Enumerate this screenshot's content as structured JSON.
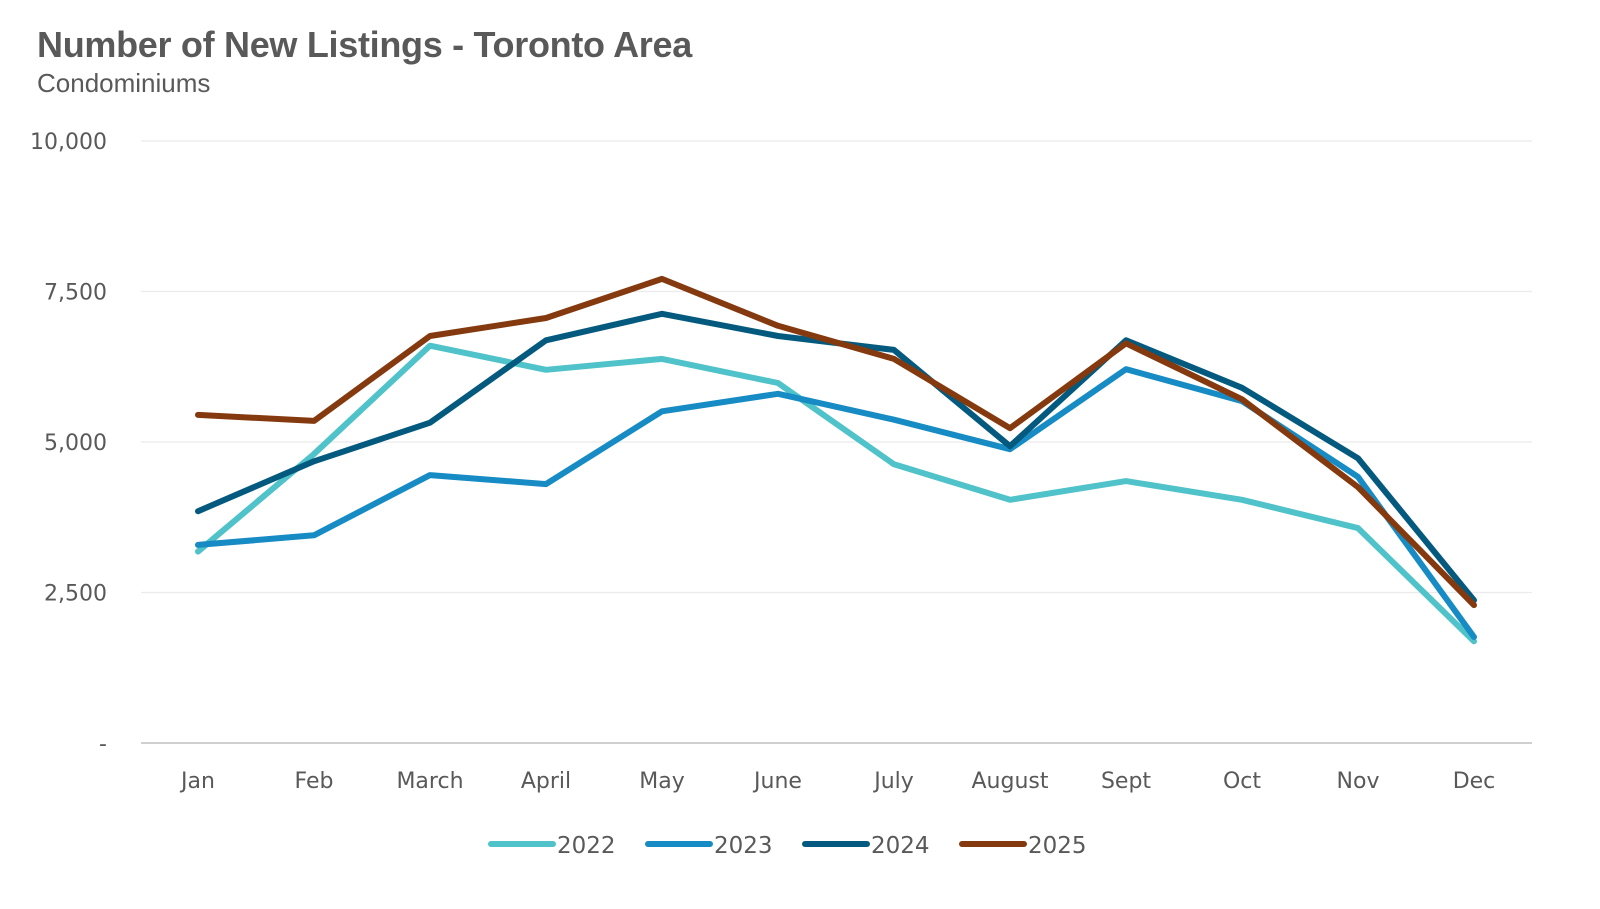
{
  "chart_data": {
    "type": "line",
    "title": "Number of New Listings - Toronto Area",
    "subtitle": "Condominiums",
    "xlabel": "",
    "ylabel": "",
    "categories": [
      "Jan",
      "Feb",
      "March",
      "April",
      "May",
      "June",
      "July",
      "August",
      "Sept",
      "Oct",
      "Nov",
      "Dec"
    ],
    "ylim": [
      0,
      10000
    ],
    "yticks": [
      0,
      2500,
      5000,
      7500,
      10000
    ],
    "ytick_labels": [
      "-",
      "2,500",
      "5,000",
      "7,500",
      "10,000"
    ],
    "grid": true,
    "legend_position": "bottom",
    "series": [
      {
        "name": "2022",
        "color": "#4FC3C9",
        "values": [
          3180,
          4800,
          6600,
          6200,
          6380,
          5980,
          4630,
          4040,
          4350,
          4040,
          3570,
          1690
        ]
      },
      {
        "name": "2023",
        "color": "#168BC4",
        "values": [
          3290,
          3450,
          4450,
          4300,
          5510,
          5800,
          5370,
          4880,
          6210,
          5680,
          4420,
          1760
        ]
      },
      {
        "name": "2024",
        "color": "#045A7E",
        "values": [
          3850,
          4680,
          5320,
          6690,
          7130,
          6760,
          6530,
          4930,
          6690,
          5900,
          4730,
          2370
        ]
      },
      {
        "name": "2025",
        "color": "#843A0E",
        "values": [
          5450,
          5350,
          6760,
          7060,
          7710,
          6930,
          6380,
          5230,
          6640,
          5710,
          4250,
          2290
        ]
      }
    ]
  }
}
